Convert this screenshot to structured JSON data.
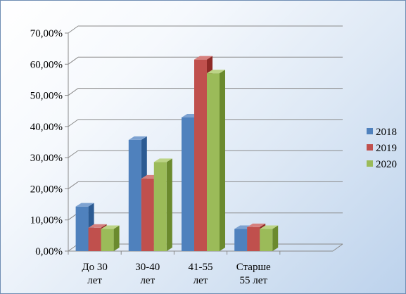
{
  "chart_data": {
    "type": "bar",
    "style": "3d-clustered-column",
    "categories": [
      [
        "До 30",
        "лет"
      ],
      [
        "30-40",
        "лет"
      ],
      [
        "41-55",
        "лет"
      ],
      [
        "Старше",
        "55 лет"
      ]
    ],
    "series": [
      {
        "name": "2018",
        "color": "#4f81bd",
        "side": "#2c5b93",
        "top": "#7da2d1",
        "values": [
          14.3,
          35.7,
          42.9,
          7.1
        ]
      },
      {
        "name": "2019",
        "color": "#c0504d",
        "side": "#8e2a27",
        "top": "#d6807e",
        "values": [
          7.5,
          23.3,
          61.5,
          7.7
        ]
      },
      {
        "name": "2020",
        "color": "#9bbb59",
        "side": "#6b8a2e",
        "top": "#bcd486",
        "values": [
          7.1,
          28.6,
          57.1,
          7.1
        ]
      }
    ],
    "y_ticks": [
      "0,00%",
      "10,00%",
      "20,00%",
      "30,00%",
      "40,00%",
      "50,00%",
      "60,00%",
      "70,00%"
    ],
    "ylim": [
      0,
      70
    ],
    "grid": true,
    "legend": "right"
  }
}
